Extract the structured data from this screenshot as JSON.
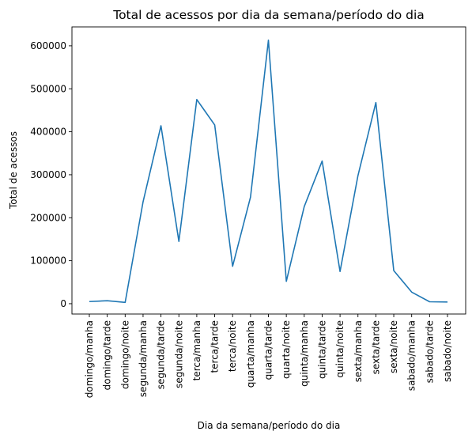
{
  "chart_data": {
    "type": "line",
    "title": "Total de acessos por dia da semana/período do dia",
    "xlabel": "Dia da semana/período do dia",
    "ylabel": "Total de acessos",
    "categories": [
      "domingo/manha",
      "domingo/tarde",
      "domingo/noite",
      "segunda/manha",
      "segunda/tarde",
      "segunda/noite",
      "terca/manha",
      "terca/tarde",
      "terca/noite",
      "quarta/manha",
      "quarta/tarde",
      "quarta/noite",
      "quinta/manha",
      "quinta/tarde",
      "quinta/noite",
      "sexta/manha",
      "sexta/tarde",
      "sexta/noite",
      "sabado/manha",
      "sabado/tarde",
      "sabado/noite"
    ],
    "series": [
      {
        "values": [
          5000,
          7000,
          3000,
          237000,
          414000,
          145000,
          475000,
          416000,
          87000,
          248000,
          613000,
          52000,
          226000,
          332000,
          75000,
          298000,
          468000,
          77000,
          27000,
          4500,
          4000
        ],
        "color": "#1f77b4"
      }
    ],
    "yticks": [
      0,
      100000,
      200000,
      300000,
      400000,
      500000,
      600000
    ],
    "ylim": [
      -24000,
      644000
    ],
    "grid": false,
    "legend": "none"
  }
}
